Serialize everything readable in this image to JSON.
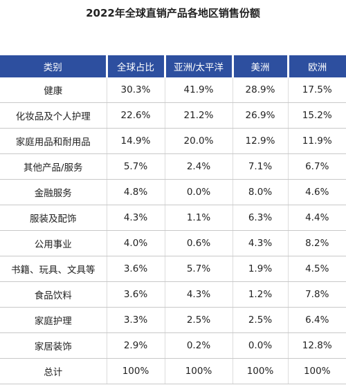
{
  "title": "2022年全球直销产品各地区销售份额",
  "table": {
    "header": [
      "类别",
      "全球占比",
      "亚洲/太平洋",
      "美洲",
      "欧洲"
    ],
    "rows": [
      [
        "健康",
        "30.3%",
        "41.9%",
        "28.9%",
        "17.5%"
      ],
      [
        "化妆品及个人护理",
        "22.6%",
        "21.2%",
        "26.9%",
        "15.2%"
      ],
      [
        "家庭用品和耐用品",
        "14.9%",
        "20.0%",
        "12.9%",
        "11.9%"
      ],
      [
        "其他产品/服务",
        "5.7%",
        "2.4%",
        "7.1%",
        "6.7%"
      ],
      [
        "金融服务",
        "4.8%",
        "0.0%",
        "8.0%",
        "4.6%"
      ],
      [
        "服装及配饰",
        "4.3%",
        "1.1%",
        "6.3%",
        "4.4%"
      ],
      [
        "公用事业",
        "4.0%",
        "0.6%",
        "4.3%",
        "8.2%"
      ],
      [
        "书籍、玩具、文具等",
        "3.6%",
        "5.7%",
        "1.9%",
        "4.5%"
      ],
      [
        "食品饮料",
        "3.6%",
        "4.3%",
        "1.2%",
        "7.8%"
      ],
      [
        "家庭护理",
        "3.3%",
        "2.5%",
        "2.5%",
        "6.4%"
      ],
      [
        "家居装饰",
        "2.9%",
        "0.2%",
        "0.0%",
        "12.8%"
      ],
      [
        "总计",
        "100%",
        "100%",
        "100%",
        "100%"
      ]
    ]
  }
}
